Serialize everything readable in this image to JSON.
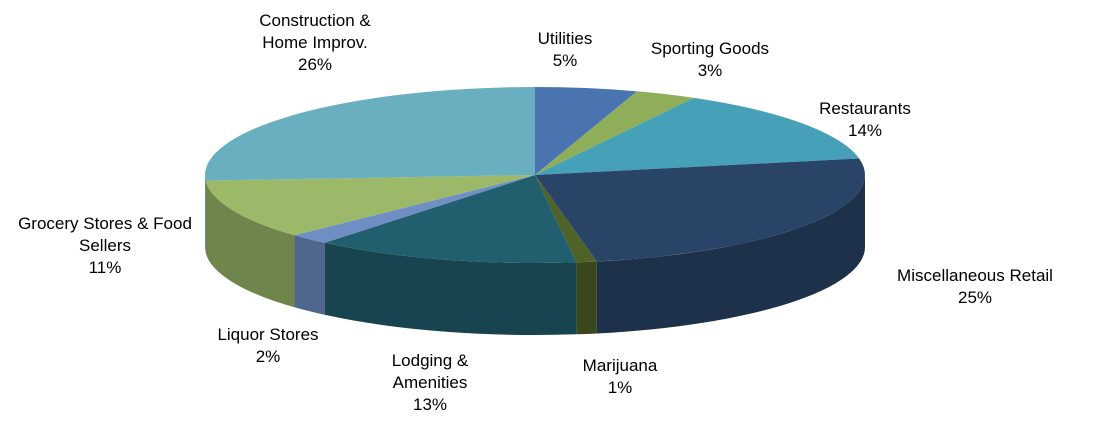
{
  "chart_data": {
    "type": "pie3d",
    "categories": [
      "Utilities",
      "Sporting Goods",
      "Restaurants",
      "Miscellaneous Retail",
      "Marijuana",
      "Lodging & Amenities",
      "Liquor Stores",
      "Grocery Stores & Food Sellers",
      "Construction & Home Improv."
    ],
    "values": [
      5,
      3,
      14,
      25,
      1,
      13,
      2,
      11,
      26
    ],
    "value_labels": [
      "5%",
      "3%",
      "14%",
      "25%",
      "1%",
      "13%",
      "2%",
      "11%",
      "26%"
    ],
    "colors": [
      "#4a74b0",
      "#8fae5a",
      "#45a0b8",
      "#2a4468",
      "#4f6228",
      "#215f6e",
      "#6f8fc4",
      "#9cb96a",
      "#6aafc0"
    ]
  }
}
